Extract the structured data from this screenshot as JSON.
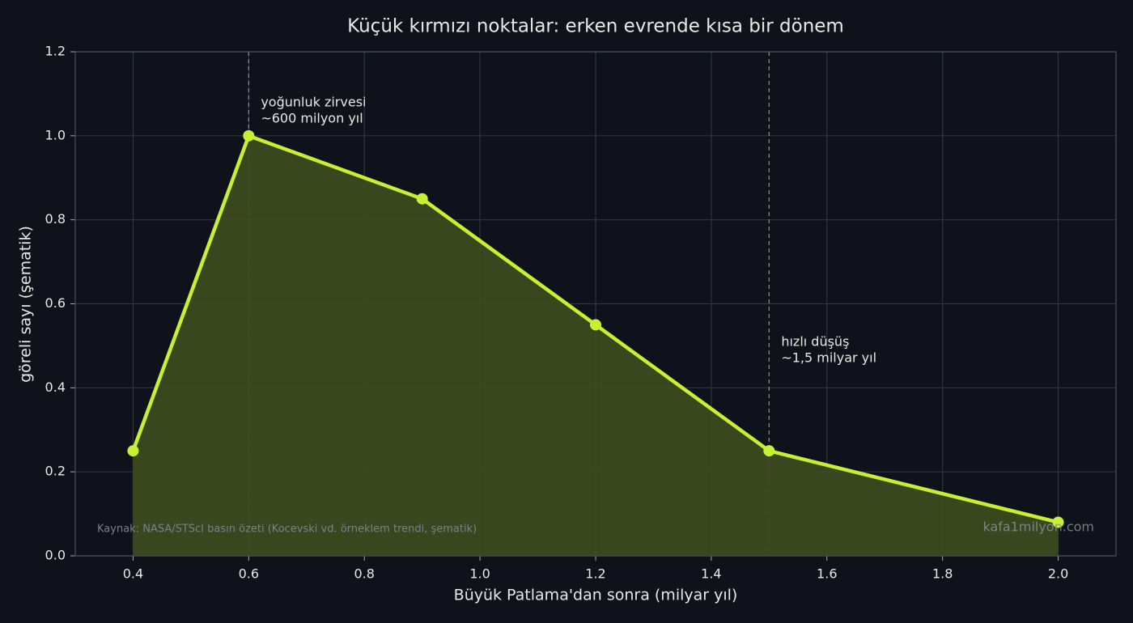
{
  "chart_data": {
    "type": "line",
    "title": "Küçük kırmızı noktalar: erken evrende kısa bir dönem",
    "xlabel": "Büyük Patlama'dan sonra (milyar yıl)",
    "ylabel": "göreli sayı (şematik)",
    "x": [
      0.4,
      0.6,
      0.9,
      1.2,
      1.5,
      2.0
    ],
    "values": [
      0.25,
      1.0,
      0.85,
      0.55,
      0.25,
      0.08
    ],
    "color": "#c8f032",
    "fill_color": "#3d4a1f",
    "xlim": [
      0.3,
      2.1
    ],
    "ylim": [
      0,
      1.2
    ],
    "xticks": [
      0.4,
      0.6,
      0.8,
      {
        "value": 1.0,
        "label": "1.0"
      },
      1.2,
      1.4,
      1.6,
      1.8,
      {
        "value": 2.0,
        "label": "2.0"
      }
    ],
    "yticks": [
      {
        "value": 0,
        "label": "0.0"
      },
      0.2,
      0.4,
      0.6,
      0.8,
      {
        "value": 1.0,
        "label": "1.0"
      },
      1.2
    ],
    "grid": true,
    "annotations": [
      {
        "x": 0.6,
        "lines": [
          "yoğunluk zirvesi",
          "~600 milyon yıl"
        ]
      },
      {
        "x": 1.5,
        "lines": [
          "hızlı düşüş",
          "~1,5 milyar yıl"
        ]
      }
    ],
    "source": "Kaynak: NASA/STScI basın özeti (Kocevski vd. örneklem trendi, şematik)",
    "watermark": "kafa1milyon.com"
  }
}
